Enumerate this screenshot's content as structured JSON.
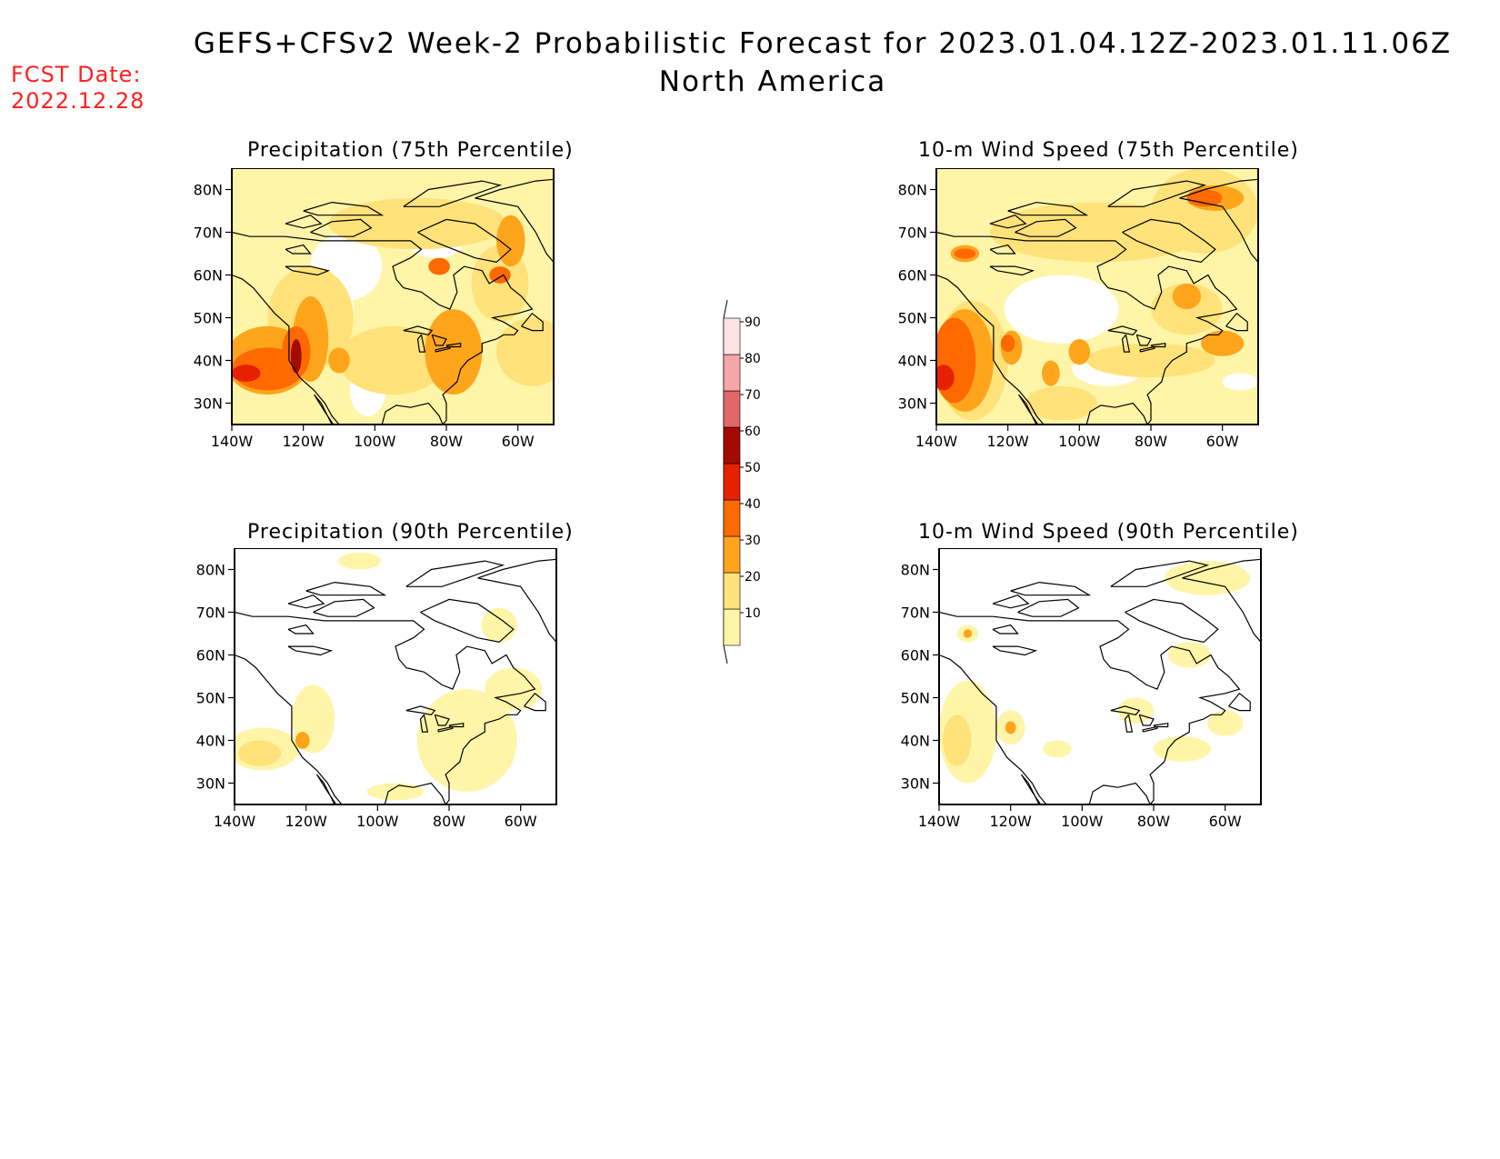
{
  "title": {
    "line1": "GEFS+CFSv2 Week-2 Probabilistic Forecast for 2023.01.04.12Z-2023.01.11.06Z",
    "line2": "North America"
  },
  "fcst_date": {
    "label": "FCST Date:",
    "value": "2022.12.28"
  },
  "panels": [
    {
      "id": "precip75",
      "title": "Precipitation (75th Percentile)"
    },
    {
      "id": "wind75",
      "title": "10-m Wind Speed (75th Percentile)"
    },
    {
      "id": "precip90",
      "title": "Precipitation (90th Percentile)"
    },
    {
      "id": "wind90",
      "title": "10-m Wind Speed (90th Percentile)"
    }
  ],
  "axes": {
    "lat_labels": [
      "80N",
      "70N",
      "60N",
      "50N",
      "40N",
      "30N"
    ],
    "lat_values": [
      80,
      70,
      60,
      50,
      40,
      30
    ],
    "lon_labels": [
      "140W",
      "120W",
      "100W",
      "80W",
      "60W"
    ],
    "lon_values": [
      -140,
      -120,
      -100,
      -80,
      -60
    ],
    "lon_range": [
      -140,
      -50
    ],
    "lat_range": [
      25,
      85
    ]
  },
  "colorbar": {
    "levels": [
      "10",
      "20",
      "30",
      "40",
      "50",
      "60",
      "70",
      "80",
      "90"
    ],
    "colors": [
      "#fff5a8",
      "#ffe27a",
      "#ffa51c",
      "#ff6a00",
      "#e62000",
      "#a50a00",
      "#e06868",
      "#f5a6a6",
      "#fde4e4"
    ]
  }
}
